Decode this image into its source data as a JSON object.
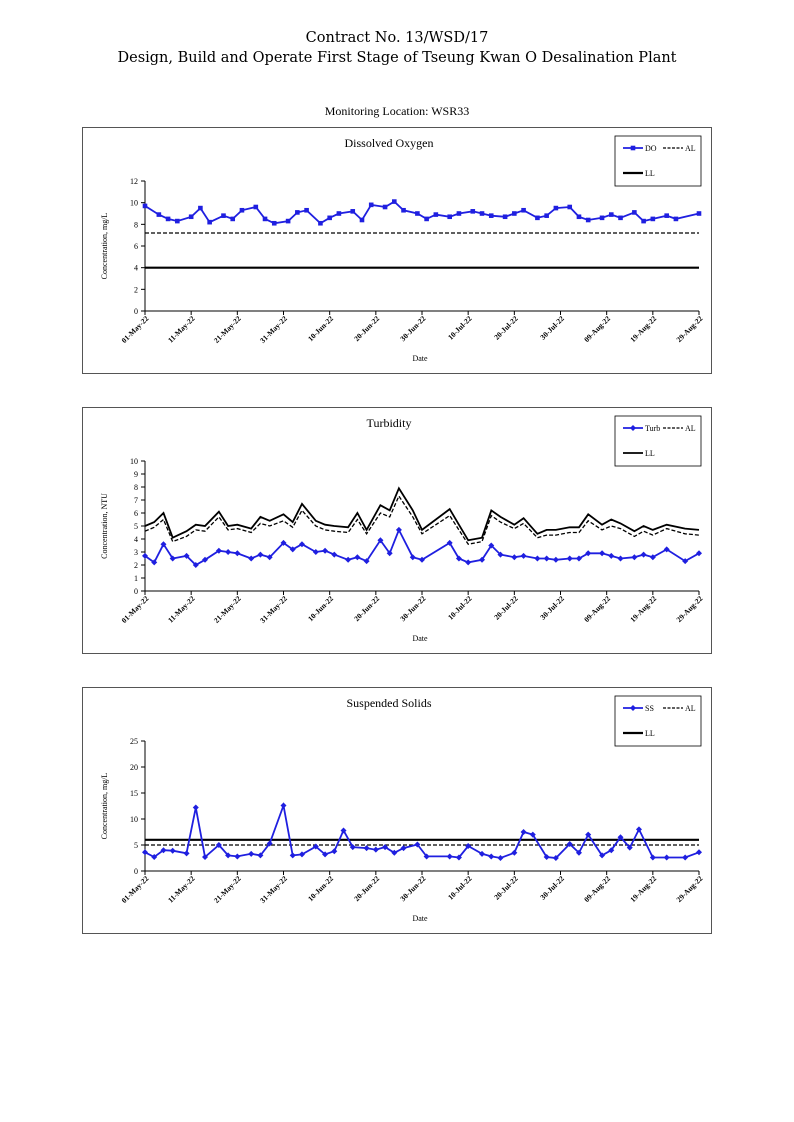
{
  "header": {
    "line1": "Contract No. 13/WSD/17",
    "line2": "Design, Build and Operate First Stage of Tseung Kwan O Desalination Plant",
    "location": "Monitoring Location: WSR33"
  },
  "chart_data": [
    {
      "type": "line",
      "title": "Dissolved Oxygen",
      "xlabel": "Date",
      "ylabel": "Concentration, mg/L",
      "ylim": [
        0,
        12
      ],
      "yticks": [
        "0",
        "2",
        "4",
        "6",
        "8",
        "10",
        "12"
      ],
      "x_start": "2022-05-01",
      "x_end": "2022-08-29",
      "xtick_labels": [
        "01-May-22",
        "11-May-22",
        "21-May-22",
        "31-May-22",
        "10-Jun-22",
        "20-Jun-22",
        "30-Jun-22",
        "10-Jul-22",
        "20-Jul-22",
        "30-Jul-22",
        "09-Aug-22",
        "19-Aug-22",
        "29-Aug-22"
      ],
      "grid": false,
      "legend": "top-right",
      "series": [
        {
          "name": "DO",
          "color": "#1f1fe0",
          "style": "solid-marker",
          "marker": "square",
          "x": [
            "2022-05-01",
            "2022-05-04",
            "2022-05-06",
            "2022-05-08",
            "2022-05-11",
            "2022-05-13",
            "2022-05-15",
            "2022-05-18",
            "2022-05-20",
            "2022-05-22",
            "2022-05-25",
            "2022-05-27",
            "2022-05-29",
            "2022-06-01",
            "2022-06-03",
            "2022-06-05",
            "2022-06-08",
            "2022-06-10",
            "2022-06-12",
            "2022-06-15",
            "2022-06-17",
            "2022-06-19",
            "2022-06-22",
            "2022-06-24",
            "2022-06-26",
            "2022-06-29",
            "2022-07-01",
            "2022-07-03",
            "2022-07-06",
            "2022-07-08",
            "2022-07-11",
            "2022-07-13",
            "2022-07-15",
            "2022-07-18",
            "2022-07-20",
            "2022-07-22",
            "2022-07-25",
            "2022-07-27",
            "2022-07-29",
            "2022-08-01",
            "2022-08-03",
            "2022-08-05",
            "2022-08-08",
            "2022-08-10",
            "2022-08-12",
            "2022-08-15",
            "2022-08-17",
            "2022-08-19",
            "2022-08-22",
            "2022-08-24",
            "2022-08-29"
          ],
          "y": [
            9.7,
            8.9,
            8.5,
            8.3,
            8.7,
            9.5,
            8.2,
            8.8,
            8.5,
            9.3,
            9.6,
            8.5,
            8.1,
            8.3,
            9.1,
            9.3,
            8.1,
            8.6,
            9.0,
            9.2,
            8.4,
            9.8,
            9.6,
            10.1,
            9.3,
            9.0,
            8.5,
            8.9,
            8.7,
            9.0,
            9.2,
            9.0,
            8.8,
            8.7,
            9.0,
            9.3,
            8.6,
            8.8,
            9.5,
            9.6,
            8.7,
            8.4,
            8.6,
            8.9,
            8.6,
            9.1,
            8.3,
            8.5,
            8.8,
            8.5,
            9.0
          ]
        },
        {
          "name": "AL",
          "color": "#000000",
          "style": "dashed",
          "x": [
            "2022-05-01",
            "2022-08-29"
          ],
          "y": [
            7.2,
            7.2
          ]
        },
        {
          "name": "LL",
          "color": "#000000",
          "style": "solid-thick",
          "x": [
            "2022-05-01",
            "2022-08-29"
          ],
          "y": [
            4.0,
            4.0
          ]
        }
      ]
    },
    {
      "type": "line",
      "title": "Turbidity",
      "xlabel": "Date",
      "ylabel": "Concentration, NTU",
      "ylim": [
        0,
        10
      ],
      "yticks": [
        "0",
        "1",
        "2",
        "3",
        "4",
        "5",
        "6",
        "7",
        "8",
        "9",
        "10"
      ],
      "x_start": "2022-05-01",
      "x_end": "2022-08-29",
      "xtick_labels": [
        "01-May-22",
        "11-May-22",
        "21-May-22",
        "31-May-22",
        "10-Jun-22",
        "20-Jun-22",
        "30-Jun-22",
        "10-Jul-22",
        "20-Jul-22",
        "30-Jul-22",
        "09-Aug-22",
        "19-Aug-22",
        "29-Aug-22"
      ],
      "grid": false,
      "legend": "top-right",
      "series": [
        {
          "name": "Turb",
          "color": "#1f1fe0",
          "style": "solid-marker",
          "marker": "diamond",
          "x": [
            "2022-05-01",
            "2022-05-03",
            "2022-05-05",
            "2022-05-07",
            "2022-05-10",
            "2022-05-12",
            "2022-05-14",
            "2022-05-17",
            "2022-05-19",
            "2022-05-21",
            "2022-05-24",
            "2022-05-26",
            "2022-05-28",
            "2022-05-31",
            "2022-06-02",
            "2022-06-04",
            "2022-06-07",
            "2022-06-09",
            "2022-06-11",
            "2022-06-14",
            "2022-06-16",
            "2022-06-18",
            "2022-06-21",
            "2022-06-23",
            "2022-06-25",
            "2022-06-28",
            "2022-06-30",
            "2022-07-06",
            "2022-07-08",
            "2022-07-10",
            "2022-07-13",
            "2022-07-15",
            "2022-07-17",
            "2022-07-20",
            "2022-07-22",
            "2022-07-25",
            "2022-07-27",
            "2022-07-29",
            "2022-08-01",
            "2022-08-03",
            "2022-08-05",
            "2022-08-08",
            "2022-08-10",
            "2022-08-12",
            "2022-08-15",
            "2022-08-17",
            "2022-08-19",
            "2022-08-22",
            "2022-08-26",
            "2022-08-29"
          ],
          "y": [
            2.7,
            2.2,
            3.6,
            2.5,
            2.7,
            2.0,
            2.4,
            3.1,
            3.0,
            2.9,
            2.5,
            2.8,
            2.6,
            3.7,
            3.2,
            3.6,
            3.0,
            3.1,
            2.8,
            2.4,
            2.6,
            2.3,
            3.9,
            2.9,
            4.7,
            2.6,
            2.4,
            3.7,
            2.5,
            2.2,
            2.4,
            3.5,
            2.8,
            2.6,
            2.7,
            2.5,
            2.5,
            2.4,
            2.5,
            2.5,
            2.9,
            2.9,
            2.7,
            2.5,
            2.6,
            2.8,
            2.6,
            3.2,
            2.3,
            2.9
          ]
        },
        {
          "name": "AL",
          "color": "#000000",
          "style": "dashed",
          "x": [
            "2022-05-01",
            "2022-05-03",
            "2022-05-05",
            "2022-05-07",
            "2022-05-10",
            "2022-05-12",
            "2022-05-14",
            "2022-05-17",
            "2022-05-19",
            "2022-05-21",
            "2022-05-24",
            "2022-05-26",
            "2022-05-28",
            "2022-05-31",
            "2022-06-02",
            "2022-06-04",
            "2022-06-07",
            "2022-06-09",
            "2022-06-11",
            "2022-06-14",
            "2022-06-16",
            "2022-06-18",
            "2022-06-21",
            "2022-06-23",
            "2022-06-25",
            "2022-06-28",
            "2022-06-30",
            "2022-07-06",
            "2022-07-08",
            "2022-07-10",
            "2022-07-13",
            "2022-07-15",
            "2022-07-17",
            "2022-07-20",
            "2022-07-22",
            "2022-07-25",
            "2022-07-27",
            "2022-07-29",
            "2022-08-01",
            "2022-08-03",
            "2022-08-05",
            "2022-08-08",
            "2022-08-10",
            "2022-08-12",
            "2022-08-15",
            "2022-08-17",
            "2022-08-19",
            "2022-08-22",
            "2022-08-26",
            "2022-08-29"
          ],
          "y": [
            4.6,
            4.9,
            5.5,
            3.8,
            4.2,
            4.7,
            4.6,
            5.7,
            4.7,
            4.8,
            4.5,
            5.2,
            5.0,
            5.4,
            4.9,
            6.2,
            5.0,
            4.7,
            4.6,
            4.5,
            5.5,
            4.4,
            6.0,
            5.7,
            7.3,
            5.7,
            4.4,
            5.8,
            4.7,
            3.6,
            3.8,
            5.8,
            5.3,
            4.8,
            5.2,
            4.1,
            4.3,
            4.3,
            4.5,
            4.5,
            5.4,
            4.7,
            5.0,
            4.8,
            4.2,
            4.6,
            4.3,
            4.8,
            4.4,
            4.3
          ]
        },
        {
          "name": "LL",
          "color": "#000000",
          "style": "solid",
          "x": [
            "2022-05-01",
            "2022-05-03",
            "2022-05-05",
            "2022-05-07",
            "2022-05-10",
            "2022-05-12",
            "2022-05-14",
            "2022-05-17",
            "2022-05-19",
            "2022-05-21",
            "2022-05-24",
            "2022-05-26",
            "2022-05-28",
            "2022-05-31",
            "2022-06-02",
            "2022-06-04",
            "2022-06-07",
            "2022-06-09",
            "2022-06-11",
            "2022-06-14",
            "2022-06-16",
            "2022-06-18",
            "2022-06-21",
            "2022-06-23",
            "2022-06-25",
            "2022-06-28",
            "2022-06-30",
            "2022-07-06",
            "2022-07-08",
            "2022-07-10",
            "2022-07-13",
            "2022-07-15",
            "2022-07-17",
            "2022-07-20",
            "2022-07-22",
            "2022-07-25",
            "2022-07-27",
            "2022-07-29",
            "2022-08-01",
            "2022-08-03",
            "2022-08-05",
            "2022-08-08",
            "2022-08-10",
            "2022-08-12",
            "2022-08-15",
            "2022-08-17",
            "2022-08-19",
            "2022-08-22",
            "2022-08-26",
            "2022-08-29"
          ],
          "y": [
            5.0,
            5.3,
            6.0,
            4.1,
            4.6,
            5.1,
            5.0,
            6.1,
            5.0,
            5.1,
            4.8,
            5.7,
            5.4,
            5.9,
            5.3,
            6.7,
            5.4,
            5.1,
            5.0,
            4.9,
            6.0,
            4.7,
            6.6,
            6.2,
            7.9,
            6.2,
            4.7,
            6.3,
            5.1,
            3.9,
            4.1,
            6.2,
            5.7,
            5.1,
            5.6,
            4.4,
            4.7,
            4.7,
            4.9,
            4.9,
            5.9,
            5.1,
            5.5,
            5.2,
            4.6,
            5.0,
            4.7,
            5.1,
            4.8,
            4.7
          ]
        }
      ]
    },
    {
      "type": "line",
      "title": "Suspended Solids",
      "xlabel": "Date",
      "ylabel": "Concentration, mg/L",
      "ylim": [
        0,
        25
      ],
      "yticks": [
        "0",
        "5",
        "10",
        "15",
        "20",
        "25"
      ],
      "x_start": "2022-05-01",
      "x_end": "2022-08-29",
      "xtick_labels": [
        "01-May-22",
        "11-May-22",
        "21-May-22",
        "31-May-22",
        "10-Jun-22",
        "20-Jun-22",
        "30-Jun-22",
        "10-Jul-22",
        "20-Jul-22",
        "30-Jul-22",
        "09-Aug-22",
        "19-Aug-22",
        "29-Aug-22"
      ],
      "grid": false,
      "legend": "top-right",
      "series": [
        {
          "name": "SS",
          "color": "#1f1fe0",
          "style": "solid-marker",
          "marker": "diamond",
          "x": [
            "2022-05-01",
            "2022-05-03",
            "2022-05-05",
            "2022-05-07",
            "2022-05-10",
            "2022-05-12",
            "2022-05-14",
            "2022-05-17",
            "2022-05-19",
            "2022-05-21",
            "2022-05-24",
            "2022-05-26",
            "2022-05-28",
            "2022-05-31",
            "2022-06-02",
            "2022-06-04",
            "2022-06-07",
            "2022-06-09",
            "2022-06-11",
            "2022-06-13",
            "2022-06-15",
            "2022-06-18",
            "2022-06-20",
            "2022-06-22",
            "2022-06-24",
            "2022-06-26",
            "2022-06-29",
            "2022-07-01",
            "2022-07-06",
            "2022-07-08",
            "2022-07-10",
            "2022-07-13",
            "2022-07-15",
            "2022-07-17",
            "2022-07-20",
            "2022-07-22",
            "2022-07-24",
            "2022-07-27",
            "2022-07-29",
            "2022-08-01",
            "2022-08-03",
            "2022-08-05",
            "2022-08-08",
            "2022-08-10",
            "2022-08-12",
            "2022-08-14",
            "2022-08-16",
            "2022-08-19",
            "2022-08-22",
            "2022-08-26",
            "2022-08-29"
          ],
          "y": [
            3.6,
            2.7,
            4.0,
            3.9,
            3.4,
            12.2,
            2.7,
            5.0,
            3.0,
            2.8,
            3.3,
            3.0,
            5.3,
            12.6,
            3.0,
            3.2,
            4.7,
            3.2,
            3.8,
            7.8,
            4.6,
            4.4,
            4.1,
            4.6,
            3.5,
            4.4,
            5.1,
            2.8,
            2.8,
            2.6,
            4.8,
            3.3,
            2.8,
            2.5,
            3.5,
            7.5,
            7.0,
            2.7,
            2.5,
            5.2,
            3.5,
            7.0,
            3.0,
            4.0,
            6.5,
            4.5,
            8.0,
            2.6,
            2.6,
            2.6,
            3.6
          ]
        },
        {
          "name": "AL",
          "color": "#000000",
          "style": "dashed",
          "x": [
            "2022-05-01",
            "2022-08-29"
          ],
          "y": [
            5.0,
            5.0
          ]
        },
        {
          "name": "LL",
          "color": "#000000",
          "style": "solid-thick",
          "x": [
            "2022-05-01",
            "2022-08-29"
          ],
          "y": [
            6.0,
            6.0
          ]
        }
      ]
    }
  ]
}
